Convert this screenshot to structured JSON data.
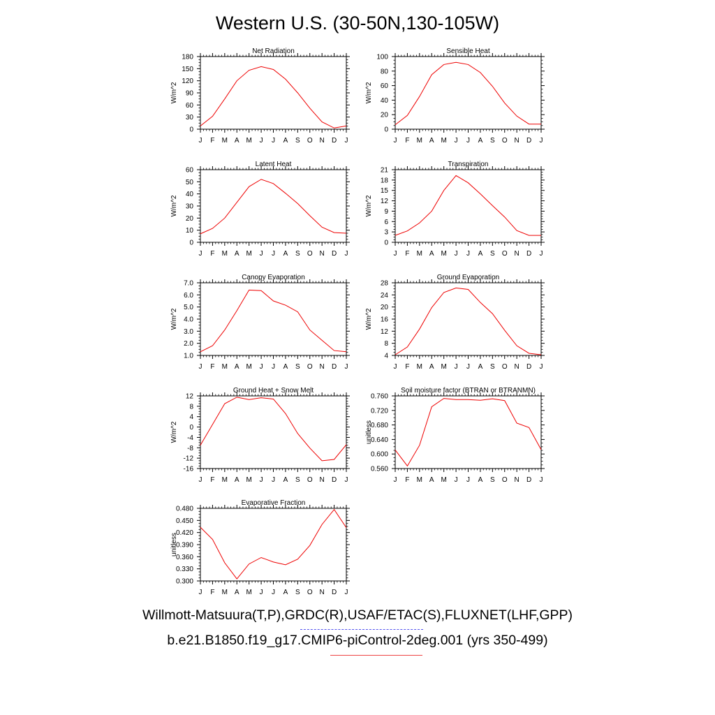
{
  "title": "Western U.S. (30-50N,130-105W)",
  "legend": {
    "obs_label": "Willmott-Matsuura(T,P),GRDC(R),USAF/ETAC(S),FLUXNET(LHF,GPP)",
    "model_label": "b.e21.B1850.f19_g17.CMIP6-piControl-2deg.001 (yrs 350-499)",
    "obs_color": "#5555ee",
    "model_color": "#ee0000"
  },
  "chart_data": [
    {
      "type": "line",
      "title": "Net Radiation",
      "ylabel": "W/m^2",
      "x": [
        "J",
        "F",
        "M",
        "A",
        "M",
        "J",
        "J",
        "A",
        "S",
        "O",
        "N",
        "D",
        "J"
      ],
      "ylim": [
        0,
        180
      ],
      "yticks": [
        "0",
        "30",
        "60",
        "90",
        "120",
        "150",
        "180"
      ],
      "series": [
        {
          "color": "#ee0000",
          "values": [
            8,
            32,
            75,
            120,
            146,
            155,
            148,
            124,
            90,
            52,
            18,
            3,
            8
          ]
        }
      ]
    },
    {
      "type": "line",
      "title": "Sensible Heat",
      "ylabel": "W/m^2",
      "x": [
        "J",
        "F",
        "M",
        "A",
        "M",
        "J",
        "J",
        "A",
        "S",
        "O",
        "N",
        "D",
        "J"
      ],
      "ylim": [
        0,
        100
      ],
      "yticks": [
        "0",
        "20",
        "40",
        "60",
        "80",
        "100"
      ],
      "series": [
        {
          "color": "#ee0000",
          "values": [
            6,
            19,
            45,
            75,
            89,
            92,
            89,
            78,
            59,
            36,
            18,
            7,
            7
          ]
        }
      ]
    },
    {
      "type": "line",
      "title": "Latent Heat",
      "ylabel": "W/m^2",
      "x": [
        "J",
        "F",
        "M",
        "A",
        "M",
        "J",
        "J",
        "A",
        "S",
        "O",
        "N",
        "D",
        "J"
      ],
      "ylim": [
        0,
        60
      ],
      "yticks": [
        "0",
        "10",
        "20",
        "30",
        "40",
        "50",
        "60"
      ],
      "series": [
        {
          "color": "#ee0000",
          "values": [
            7,
            11.5,
            20,
            33,
            46,
            52,
            48.5,
            40.5,
            32,
            22,
            12.5,
            8,
            7.5
          ]
        }
      ]
    },
    {
      "type": "line",
      "title": "Transpiration",
      "ylabel": "W/m^2",
      "x": [
        "J",
        "F",
        "M",
        "A",
        "M",
        "J",
        "J",
        "A",
        "S",
        "O",
        "N",
        "D",
        "J"
      ],
      "ylim": [
        0,
        21
      ],
      "yticks": [
        "0",
        "3",
        "6",
        "9",
        "12",
        "15",
        "18",
        "21"
      ],
      "series": [
        {
          "color": "#ee0000",
          "values": [
            2,
            3.3,
            5.6,
            9,
            15,
            19.3,
            17.2,
            14,
            10.6,
            7.3,
            3.4,
            2,
            2
          ]
        }
      ]
    },
    {
      "type": "line",
      "title": "Canopy Evaporation",
      "ylabel": "W/m^2",
      "x": [
        "J",
        "F",
        "M",
        "A",
        "M",
        "J",
        "J",
        "A",
        "S",
        "O",
        "N",
        "D",
        "J"
      ],
      "ylim": [
        1,
        7
      ],
      "yticks": [
        "1.0",
        "2.0",
        "3.0",
        "4.0",
        "5.0",
        "6.0",
        "7.0"
      ],
      "series": [
        {
          "color": "#ee0000",
          "values": [
            1.3,
            1.8,
            3.1,
            4.7,
            6.4,
            6.35,
            5.5,
            5.15,
            4.6,
            3.1,
            2.25,
            1.4,
            1.3
          ]
        }
      ]
    },
    {
      "type": "line",
      "title": "Ground Evaporation",
      "ylabel": "W/m^2",
      "x": [
        "J",
        "F",
        "M",
        "A",
        "M",
        "J",
        "J",
        "A",
        "S",
        "O",
        "N",
        "D",
        "J"
      ],
      "ylim": [
        4,
        28
      ],
      "yticks": [
        "4",
        "8",
        "12",
        "16",
        "20",
        "24",
        "28"
      ],
      "series": [
        {
          "color": "#ee0000",
          "values": [
            4.2,
            6.8,
            12.7,
            19.8,
            24.8,
            26.3,
            25.8,
            21.5,
            17.8,
            12.3,
            7.2,
            4.7,
            4.2
          ]
        }
      ]
    },
    {
      "type": "line",
      "title": "Ground Heat + Snow Melt",
      "ylabel": "W/m^2",
      "x": [
        "J",
        "F",
        "M",
        "A",
        "M",
        "J",
        "J",
        "A",
        "S",
        "O",
        "N",
        "D",
        "J"
      ],
      "ylim": [
        -16,
        12
      ],
      "yticks": [
        "-16",
        "-12",
        "-8",
        "-4",
        "0",
        "4",
        "8",
        "12"
      ],
      "series": [
        {
          "color": "#ee0000",
          "values": [
            -7,
            1,
            9,
            11.5,
            10.6,
            11.3,
            10.8,
            5.2,
            -2.5,
            -8.1,
            -13,
            -12.5,
            -6.8
          ]
        }
      ]
    },
    {
      "type": "line",
      "title": "Soil moisture factor (BTRAN or BTRANMN)",
      "ylabel": "unitless",
      "x": [
        "J",
        "F",
        "M",
        "A",
        "M",
        "J",
        "J",
        "A",
        "S",
        "O",
        "N",
        "D",
        "J"
      ],
      "ylim": [
        0.56,
        0.76
      ],
      "yticks": [
        "0.560",
        "0.600",
        "0.640",
        "0.680",
        "0.720",
        "0.760"
      ],
      "series": [
        {
          "color": "#ee0000",
          "values": [
            0.611,
            0.567,
            0.624,
            0.73,
            0.753,
            0.75,
            0.75,
            0.748,
            0.752,
            0.747,
            0.685,
            0.673,
            0.612
          ]
        }
      ]
    },
    {
      "type": "line",
      "title": "Evaporative Fraction",
      "ylabel": "unitless",
      "x": [
        "J",
        "F",
        "M",
        "A",
        "M",
        "J",
        "J",
        "A",
        "S",
        "O",
        "N",
        "D",
        "J"
      ],
      "ylim": [
        0.3,
        0.48
      ],
      "yticks": [
        "0.300",
        "0.330",
        "0.360",
        "0.390",
        "0.420",
        "0.450",
        "0.480"
      ],
      "series": [
        {
          "color": "#ee0000",
          "values": [
            0.433,
            0.403,
            0.345,
            0.305,
            0.342,
            0.358,
            0.347,
            0.34,
            0.354,
            0.388,
            0.44,
            0.477,
            0.432
          ]
        }
      ]
    }
  ]
}
